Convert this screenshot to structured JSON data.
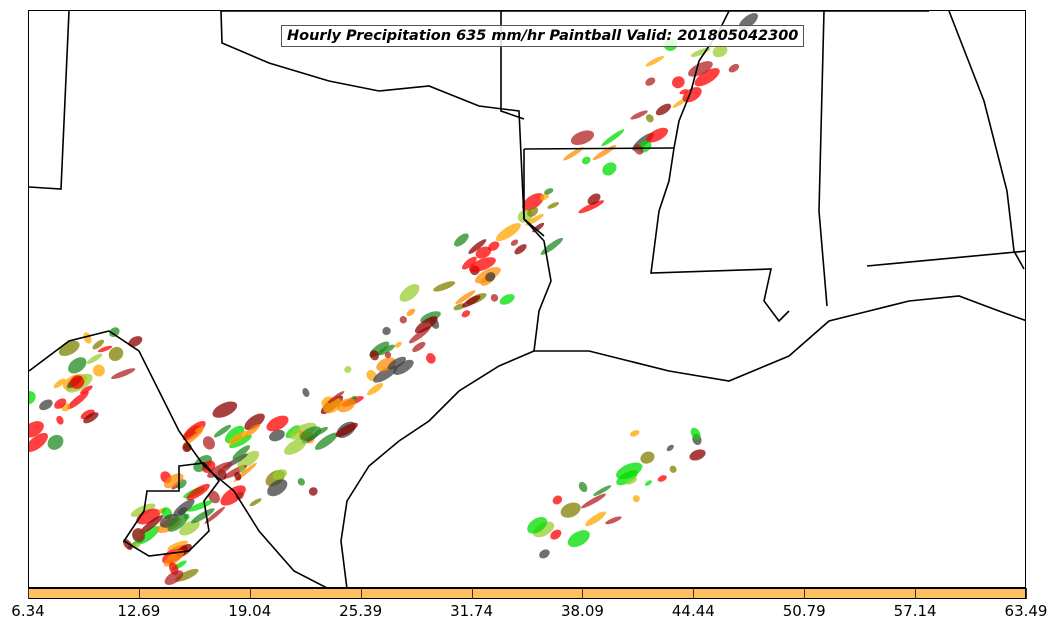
{
  "title": "Hourly Precipitation 635 mm/hr Paintball Valid: 201805042300",
  "colorbar": {
    "color": "#ffc060",
    "tick_labels": [
      "6.34",
      "12.69",
      "19.04",
      "25.39",
      "31.74",
      "38.09",
      "44.44",
      "50.79",
      "57.14",
      "63.49"
    ]
  },
  "colors": {
    "paintball": [
      "#ff0000",
      "#8b0000",
      "#ff8c00",
      "#ffa500",
      "#808000",
      "#9acd32",
      "#228b22",
      "#00dd00",
      "#404040",
      "#b22222"
    ]
  }
}
